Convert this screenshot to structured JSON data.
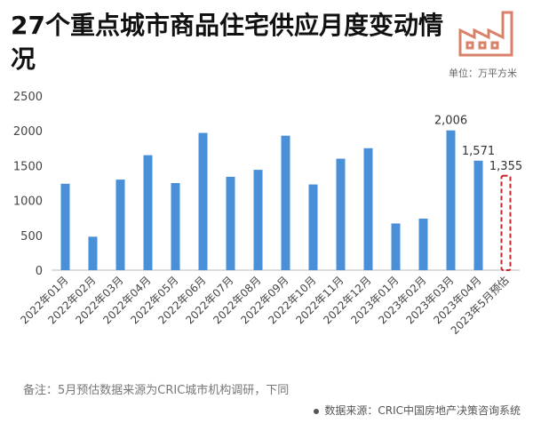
{
  "title": "27个重点城市商品住宅供应月度变动情况",
  "unit_label": "单位：万平方米",
  "note": "备注：5月预估数据来源为CRIC城市机构调研，下同",
  "source": "数据来源：CRIC中国房地产决策咨询系统",
  "icon": "factory-icon",
  "colors": {
    "bar": "#4A90D9",
    "estimate": "#C0262C",
    "icon": "#D9826A"
  },
  "chart_data": {
    "type": "bar",
    "categories": [
      "2022年01月",
      "2022年02月",
      "2022年03月",
      "2022年04月",
      "2022年05月",
      "2022年06月",
      "2022年07月",
      "2022年08月",
      "2022年09月",
      "2022年10月",
      "2022年11月",
      "2022年12月",
      "2023年01月",
      "2023年02月",
      "2023年03月",
      "2023年04月",
      "2023年5月预估"
    ],
    "values": [
      1240,
      480,
      1300,
      1650,
      1250,
      1970,
      1340,
      1440,
      1930,
      1230,
      1600,
      1750,
      670,
      740,
      2006,
      1571,
      1355
    ],
    "data_labels": {
      "14": "2,006",
      "15": "1,571",
      "16": "1,355"
    },
    "estimate_index": 16,
    "yticks": [
      0,
      500,
      1000,
      1500,
      2000,
      2500
    ],
    "ylim": [
      0,
      2500
    ],
    "grid": false
  }
}
